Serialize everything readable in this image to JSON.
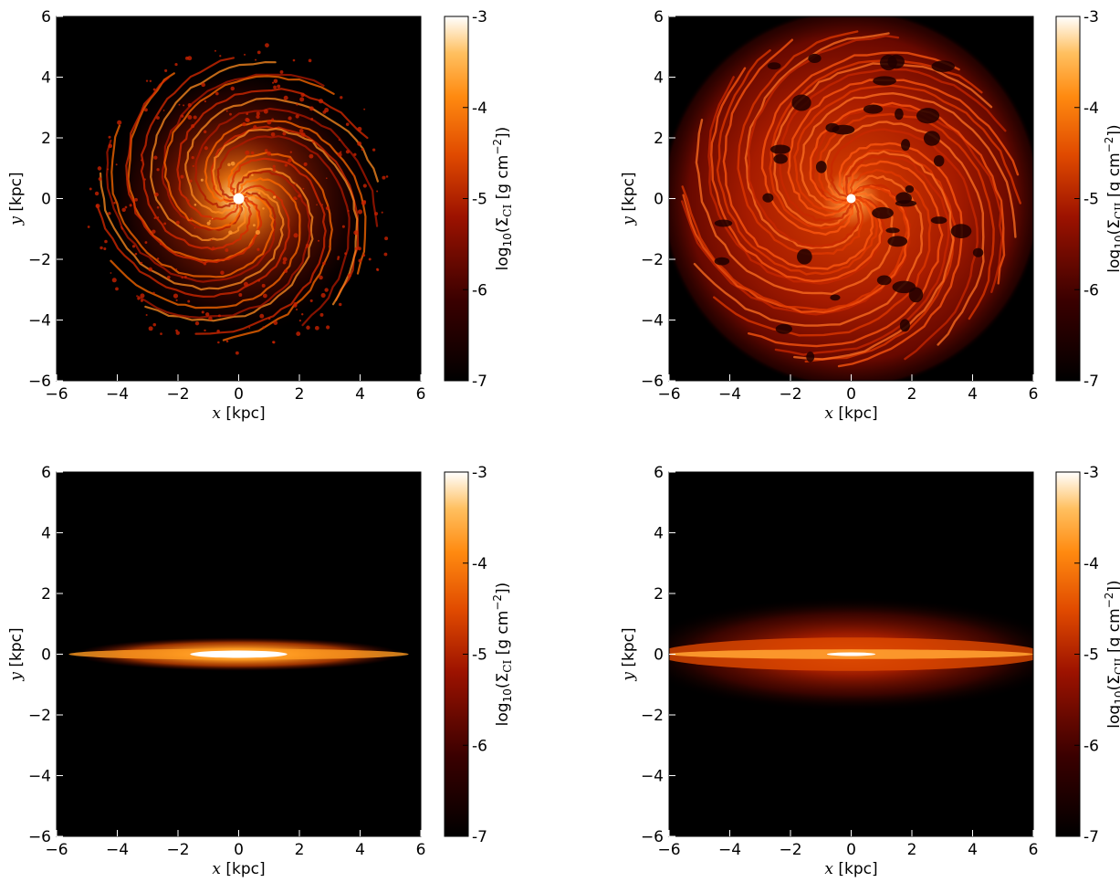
{
  "chart_data": [
    {
      "type": "heatmap",
      "view": "face-on",
      "species": "CI",
      "xlabel_var": "x",
      "xlabel_unit": " [kpc]",
      "ylabel_var": "y",
      "ylabel_unit": " [kpc]",
      "xlim": [
        -6,
        6
      ],
      "ylim": [
        -6,
        6
      ],
      "xticks": [
        "−6",
        "−4",
        "−2",
        "0",
        "2",
        "4",
        "6"
      ],
      "yticks": [
        "6",
        "4",
        "2",
        "0",
        "−2",
        "−4",
        "−6"
      ],
      "colorbar": {
        "range": [
          -7,
          -3
        ],
        "ticks": [
          "-3",
          "-4",
          "-5",
          "-6",
          "-7"
        ],
        "label_prefix": "log",
        "label_sub": "10",
        "label_sigma": "(Σ",
        "label_species": "CI",
        "label_rest": " [g cm",
        "label_sup": "−2",
        "label_close": "])"
      },
      "colormap": "gist_heat",
      "grid": false
    },
    {
      "type": "heatmap",
      "view": "face-on",
      "species": "CII",
      "xlabel_var": "x",
      "xlabel_unit": " [kpc]",
      "ylabel_var": "y",
      "ylabel_unit": " [kpc]",
      "xlim": [
        -6,
        6
      ],
      "ylim": [
        -6,
        6
      ],
      "xticks": [
        "−6",
        "−4",
        "−2",
        "0",
        "2",
        "4",
        "6"
      ],
      "yticks": [
        "6",
        "4",
        "2",
        "0",
        "−2",
        "−4",
        "−6"
      ],
      "colorbar": {
        "range": [
          -7,
          -3
        ],
        "ticks": [
          "-3",
          "-4",
          "-5",
          "-6",
          "-7"
        ],
        "label_prefix": "log",
        "label_sub": "10",
        "label_sigma": "(Σ",
        "label_species": "CII",
        "label_rest": " [g cm",
        "label_sup": "−2",
        "label_close": "])"
      },
      "colormap": "gist_heat",
      "grid": false
    },
    {
      "type": "heatmap",
      "view": "edge-on",
      "species": "CI",
      "xlabel_var": "x",
      "xlabel_unit": " [kpc]",
      "ylabel_var": "y",
      "ylabel_unit": " [kpc]",
      "xlim": [
        -6,
        6
      ],
      "ylim": [
        -6,
        6
      ],
      "xticks": [
        "−6",
        "−4",
        "−2",
        "0",
        "2",
        "4",
        "6"
      ],
      "yticks": [
        "6",
        "4",
        "2",
        "0",
        "−2",
        "−4",
        "−6"
      ],
      "colorbar": {
        "range": [
          -7,
          -3
        ],
        "ticks": [
          "-3",
          "-4",
          "-5",
          "-6",
          "-7"
        ],
        "label_prefix": "log",
        "label_sub": "10",
        "label_sigma": "(Σ",
        "label_species": "CI",
        "label_rest": " [g cm",
        "label_sup": "−2",
        "label_close": "])"
      },
      "colormap": "gist_heat",
      "grid": false
    },
    {
      "type": "heatmap",
      "view": "edge-on",
      "species": "CII",
      "xlabel_var": "x",
      "xlabel_unit": " [kpc]",
      "ylabel_var": "y",
      "ylabel_unit": " [kpc]",
      "xlim": [
        -6,
        6
      ],
      "ylim": [
        -6,
        6
      ],
      "xticks": [
        "−6",
        "−4",
        "−2",
        "0",
        "2",
        "4",
        "6"
      ],
      "yticks": [
        "6",
        "4",
        "2",
        "0",
        "−2",
        "−4",
        "−6"
      ],
      "colorbar": {
        "range": [
          -7,
          -3
        ],
        "ticks": [
          "-3",
          "-4",
          "-5",
          "-6",
          "-7"
        ],
        "label_prefix": "log",
        "label_sub": "10",
        "label_sigma": "(Σ",
        "label_species": "CII",
        "label_rest": " [g cm",
        "label_sup": "−2",
        "label_close": "])"
      },
      "colormap": "gist_heat",
      "grid": false
    }
  ]
}
